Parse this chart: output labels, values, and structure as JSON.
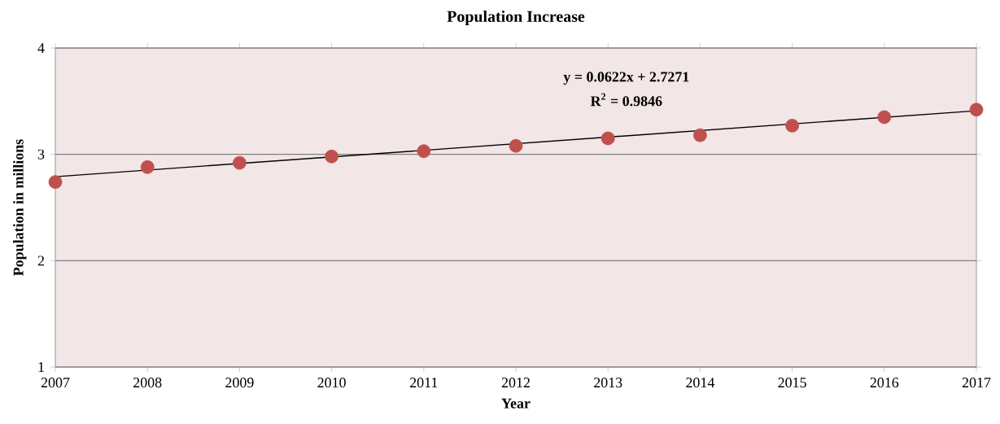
{
  "chart_data": {
    "type": "scatter",
    "title": "Population Increase",
    "xlabel": "Year",
    "ylabel": "Population in millions",
    "x": [
      2007,
      2008,
      2009,
      2010,
      2011,
      2012,
      2013,
      2014,
      2015,
      2016,
      2017
    ],
    "series": [
      {
        "color": "#c0504d",
        "marker": "circle",
        "values": [
          2.74,
          2.88,
          2.92,
          2.98,
          3.03,
          3.08,
          3.15,
          3.18,
          3.27,
          3.35,
          3.42
        ]
      },
      {
        "type": "line",
        "color": "#000000",
        "marker": "none",
        "x": [
          2007,
          2017
        ],
        "values": [
          2.79,
          3.41
        ]
      }
    ],
    "xlim": [
      2007,
      2017
    ],
    "xticks": [
      2007,
      2008,
      2009,
      2010,
      2011,
      2012,
      2013,
      2014,
      2015,
      2016,
      2017
    ],
    "ylim": [
      1,
      4
    ],
    "yticks": [
      1,
      2,
      3,
      4
    ],
    "grid": "y",
    "annotations": [
      "y = 0.0622x + 2.7271",
      "R$^{2}$ = 0.9846"
    ]
  }
}
